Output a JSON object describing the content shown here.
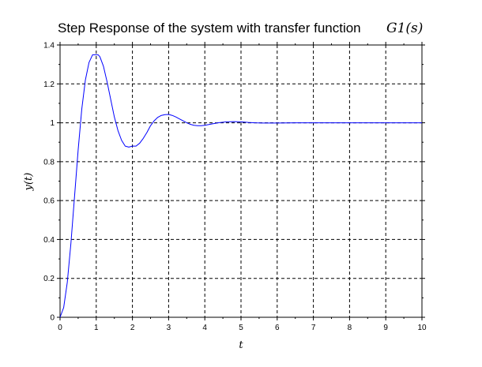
{
  "chart_data": {
    "type": "line",
    "title": "Step Response of the system with transfer function",
    "title_math": "G1(s)",
    "xlabel": "t",
    "ylabel": "y(t)",
    "xlim": [
      0,
      10
    ],
    "ylim": [
      0,
      1.4
    ],
    "xticks": [
      "0",
      "1",
      "2",
      "3",
      "4",
      "5",
      "6",
      "7",
      "8",
      "9",
      "10"
    ],
    "yticks": [
      "0",
      "0.2",
      "0.4",
      "0.6",
      "0.8",
      "1",
      "1.2",
      "1.4"
    ],
    "grid": true,
    "grid_style": "dashed",
    "line_color": "#0000ff",
    "series": [
      {
        "name": "",
        "x": [
          0,
          0.1,
          0.2,
          0.3,
          0.4,
          0.5,
          0.6,
          0.7,
          0.8,
          0.9,
          1.0,
          1.05,
          1.1,
          1.2,
          1.3,
          1.4,
          1.5,
          1.6,
          1.7,
          1.8,
          1.9,
          2.0,
          2.1,
          2.2,
          2.3,
          2.4,
          2.5,
          2.6,
          2.7,
          2.8,
          2.9,
          3.0,
          3.1,
          3.2,
          3.3,
          3.4,
          3.5,
          3.6,
          3.7,
          3.8,
          3.9,
          4.0,
          4.2,
          4.4,
          4.6,
          4.8,
          5.0,
          5.2,
          5.4,
          5.6,
          5.8,
          6.0,
          6.5,
          7.0,
          7.5,
          8.0,
          8.5,
          9.0,
          9.5,
          10.0
        ],
        "values": [
          0,
          0.05,
          0.18,
          0.38,
          0.62,
          0.86,
          1.07,
          1.22,
          1.31,
          1.35,
          1.35,
          1.35,
          1.34,
          1.29,
          1.21,
          1.12,
          1.03,
          0.96,
          0.91,
          0.88,
          0.875,
          0.88,
          0.88,
          0.895,
          0.92,
          0.95,
          0.985,
          1.01,
          1.028,
          1.038,
          1.042,
          1.043,
          1.038,
          1.03,
          1.02,
          1.01,
          1.0,
          0.992,
          0.987,
          0.985,
          0.985,
          0.987,
          0.994,
          1.001,
          1.005,
          1.006,
          1.005,
          1.002,
          1.0,
          0.999,
          0.999,
          0.999,
          1.0,
          1.0,
          1.0,
          1.0,
          1.0,
          1.0,
          1.0,
          1.0
        ]
      }
    ]
  }
}
